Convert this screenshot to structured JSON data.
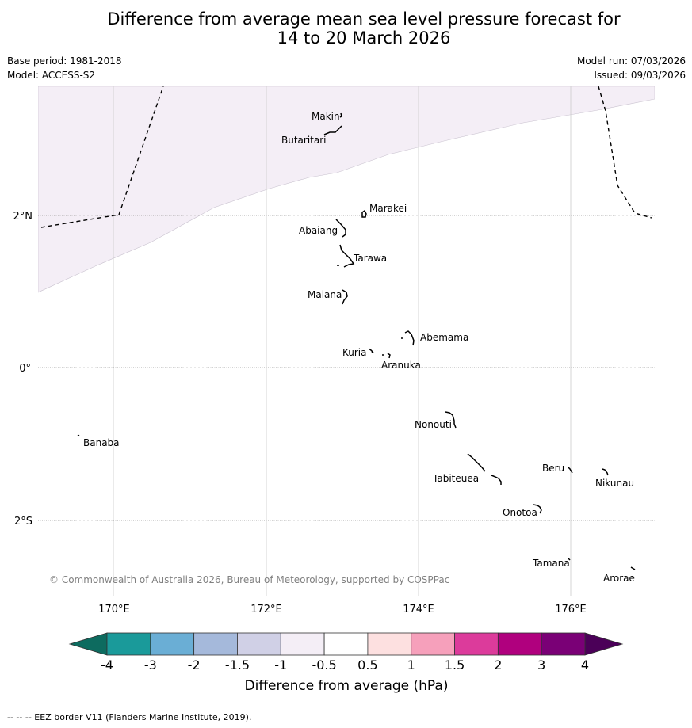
{
  "title": {
    "line1": "Difference from average mean sea level pressure forecast for",
    "line2": "14 to 20 March 2026"
  },
  "meta": {
    "base_period": "Base period: 1981-2018",
    "model": "Model: ACCESS-S2",
    "model_run": "Model run: 07/03/2026",
    "issued": "Issued: 09/03/2026"
  },
  "map": {
    "lon_labels": [
      "170°E",
      "172°E",
      "174°E",
      "176°E"
    ],
    "lat_labels": [
      "2°N",
      "0°",
      "2°S"
    ],
    "places": [
      "Makin",
      "Butaritari",
      "Marakei",
      "Abaiang",
      "Tarawa",
      "Maiana",
      "Abemama",
      "Kuria",
      "Aranuka",
      "Banaba",
      "Nonouti",
      "Beru",
      "Nikunau",
      "Tabiteuea",
      "Onotoa",
      "Tamana",
      "Arorae"
    ],
    "copyright": "© Commonwealth of Australia 2026, Bureau of Meteorology, supported by COSPPac",
    "anomaly_region_value": "-0.5 to -1 hPa"
  },
  "colorbar": {
    "label": "Difference from average (hPa)",
    "ticks": [
      "-4",
      "-3",
      "-2",
      "-1.5",
      "-1",
      "-0.5",
      "0.5",
      "1",
      "1.5",
      "2",
      "3",
      "4"
    ],
    "colors": [
      "#1a9a9a",
      "#6aaed5",
      "#a5b9db",
      "#d0d0e6",
      "#f4eef6",
      "#ffffff",
      "#fde0e0",
      "#f6a0bb",
      "#dc3b9b",
      "#b0007e",
      "#7a0076"
    ],
    "under_color": "#0d6b5f",
    "over_color": "#4b0058"
  },
  "footer": "--  --  -- EEZ border V11 (Flanders Marine Institute, 2019)."
}
